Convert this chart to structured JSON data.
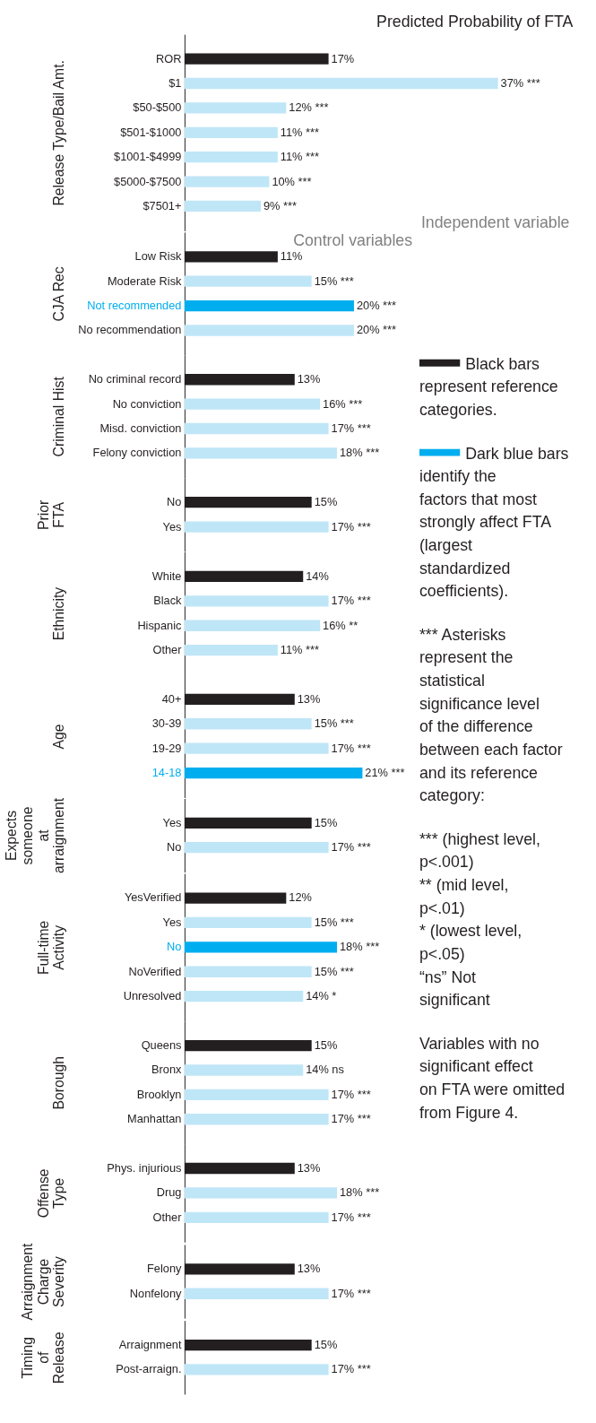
{
  "chart_data": [
    {
      "type": "bar",
      "orientation": "horizontal",
      "tick_labels": "y",
      "title": "Predicted Probability of FTA",
      "ylabel": "Release Type/Bail Amt.",
      "categories": [
        "ROR",
        "$1",
        "$50-$500",
        "$501-$1000",
        "$1001-$4999",
        "$5000-$7500",
        "$7501+"
      ],
      "values": [
        17,
        37,
        12,
        11,
        11,
        10,
        9
      ],
      "colors": [
        "#231f20",
        "#bfe6f7",
        "#bfe6f7",
        "#bfe6f7",
        "#bfe6f7",
        "#bfe6f7",
        "#bfe6f7"
      ],
      "value_labels": [
        "17%",
        "37% ***",
        "12% ***",
        "11% ***",
        "11% ***",
        "10% ***",
        "9% ***"
      ],
      "annotations": [
        "Independent variable"
      ]
    },
    {
      "type": "bar",
      "orientation": "horizontal",
      "tick_labels": "y",
      "ylabel": "CJA Rec",
      "categories": [
        "Low Risk",
        "Moderate Risk",
        "Not recommended",
        "No recommendation"
      ],
      "values": [
        11,
        15,
        20,
        20
      ],
      "colors": [
        "#231f20",
        "#bfe6f7",
        "#00aeef",
        "#bfe6f7"
      ],
      "value_labels": [
        "11%",
        "15% ***",
        "20% ***",
        "20% ***"
      ],
      "annotations": [
        "Control variables"
      ]
    },
    {
      "type": "bar",
      "orientation": "horizontal",
      "tick_labels": "y",
      "ylabel": "Criminal Hist",
      "categories": [
        "No criminal record",
        "No conviction",
        "Misd. conviction",
        "Felony conviction"
      ],
      "values": [
        13,
        16,
        17,
        18
      ],
      "colors": [
        "#231f20",
        "#bfe6f7",
        "#bfe6f7",
        "#bfe6f7"
      ],
      "value_labels": [
        "13%",
        "16% ***",
        "17% ***",
        "18% ***"
      ]
    },
    {
      "type": "bar",
      "orientation": "horizontal",
      "tick_labels": "y",
      "ylabel": "Prior FTA",
      "categories": [
        "No",
        "Yes"
      ],
      "values": [
        15,
        17
      ],
      "colors": [
        "#231f20",
        "#bfe6f7"
      ],
      "value_labels": [
        "15%",
        "17% ***"
      ]
    },
    {
      "type": "bar",
      "orientation": "horizontal",
      "tick_labels": "y",
      "ylabel": "Ethnicity",
      "categories": [
        "White",
        "Black",
        "Hispanic",
        "Other"
      ],
      "values": [
        14,
        17,
        16,
        11
      ],
      "colors": [
        "#231f20",
        "#bfe6f7",
        "#bfe6f7",
        "#bfe6f7"
      ],
      "value_labels": [
        "14%",
        "17% ***",
        "16% **",
        "11% ***"
      ]
    },
    {
      "type": "bar",
      "orientation": "horizontal",
      "tick_labels": "y",
      "ylabel": "Age",
      "categories": [
        "40+",
        "30-39",
        "19-29",
        "14-18"
      ],
      "values": [
        13,
        15,
        17,
        21
      ],
      "colors": [
        "#231f20",
        "#bfe6f7",
        "#bfe6f7",
        "#00aeef"
      ],
      "value_labels": [
        "13%",
        "15% ***",
        "17% ***",
        "21% ***"
      ]
    },
    {
      "type": "bar",
      "orientation": "horizontal",
      "tick_labels": "y",
      "ylabel": "Expects someone at arraignment",
      "categories": [
        "Yes",
        "No"
      ],
      "values": [
        15,
        17
      ],
      "colors": [
        "#231f20",
        "#bfe6f7"
      ],
      "value_labels": [
        "15%",
        "17% ***"
      ]
    },
    {
      "type": "bar",
      "orientation": "horizontal",
      "tick_labels": "y",
      "ylabel": "Full-time Activity",
      "categories": [
        "YesVerified",
        "Yes",
        "No",
        "NoVerified",
        "Unresolved"
      ],
      "values": [
        12,
        15,
        18,
        15,
        14
      ],
      "colors": [
        "#231f20",
        "#bfe6f7",
        "#00aeef",
        "#bfe6f7",
        "#bfe6f7"
      ],
      "value_labels": [
        "12%",
        "15% ***",
        "18% ***",
        "15% ***",
        "14% *"
      ]
    },
    {
      "type": "bar",
      "orientation": "horizontal",
      "tick_labels": "y",
      "ylabel": "Borough",
      "categories": [
        "Queens",
        "Bronx",
        "Brooklyn",
        "Manhattan"
      ],
      "values": [
        15,
        14,
        17,
        17
      ],
      "colors": [
        "#231f20",
        "#bfe6f7",
        "#bfe6f7",
        "#bfe6f7"
      ],
      "value_labels": [
        "15%",
        "14% ns",
        "17% ***",
        "17% ***"
      ]
    },
    {
      "type": "bar",
      "orientation": "horizontal",
      "tick_labels": "y",
      "ylabel": "Offense Type",
      "categories": [
        "Phys. injurious",
        "Drug",
        "Other"
      ],
      "values": [
        13,
        18,
        17
      ],
      "colors": [
        "#231f20",
        "#bfe6f7",
        "#bfe6f7"
      ],
      "value_labels": [
        "13%",
        "18% ***",
        "17% ***"
      ]
    },
    {
      "type": "bar",
      "orientation": "horizontal",
      "tick_labels": "y",
      "ylabel": "Arraignment Charge Severity",
      "categories": [
        "Felony",
        "Nonfelony"
      ],
      "values": [
        13,
        17
      ],
      "colors": [
        "#231f20",
        "#bfe6f7"
      ],
      "value_labels": [
        "13%",
        "17% ***"
      ]
    },
    {
      "type": "bar",
      "orientation": "horizontal",
      "tick_labels": "y",
      "ylabel": "Timing of Release",
      "categories": [
        "Arraignment",
        "Post-arraign."
      ],
      "values": [
        15,
        17
      ],
      "colors": [
        "#231f20",
        "#bfe6f7"
      ],
      "value_labels": [
        "15%",
        "17% ***"
      ]
    },
    {
      "type": "other",
      "colors": [
        "#231f20",
        "#00aeef"
      ],
      "annotations": [
        "Black bars represent reference categories.",
        "Dark blue bars identify the factors that most strongly affect FTA (largest standardized coefficients).",
        "*** Asterisks represent the statistical significance level of the difference between each factor and its reference category:",
        "*** (highest level, p<.001)",
        "** (mid level, p<.01)",
        "* (lowest level, p<.05)",
        "“ns” Not significant",
        "Variables with no significant effect on FTA were omitted from Figure 4."
      ]
    }
  ]
}
